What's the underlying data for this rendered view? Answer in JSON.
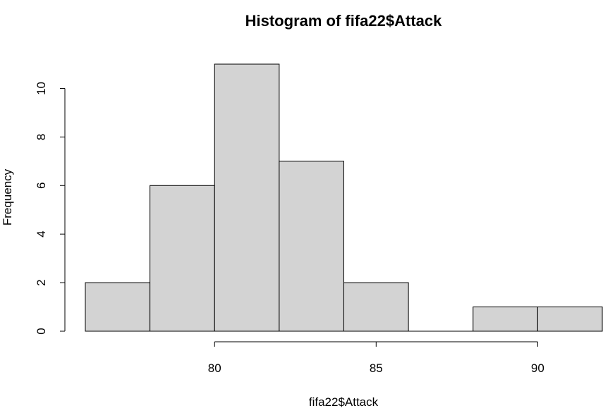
{
  "chart_data": {
    "type": "bar",
    "title": "Histogram of fifa22$Attack",
    "xlabel": "fifa22$Attack",
    "ylabel": "Frequency",
    "bins": [
      {
        "from": 76,
        "to": 78,
        "count": 2
      },
      {
        "from": 78,
        "to": 80,
        "count": 6
      },
      {
        "from": 80,
        "to": 82,
        "count": 11
      },
      {
        "from": 82,
        "to": 84,
        "count": 7
      },
      {
        "from": 84,
        "to": 86,
        "count": 2
      },
      {
        "from": 86,
        "to": 88,
        "count": 0
      },
      {
        "from": 88,
        "to": 90,
        "count": 1
      },
      {
        "from": 90,
        "to": 92,
        "count": 1
      }
    ],
    "x_ticks": [
      80,
      85,
      90
    ],
    "y_ticks": [
      0,
      2,
      4,
      6,
      8,
      10
    ],
    "xlim": [
      76,
      92
    ],
    "ylim": [
      0,
      11
    ],
    "grid": false,
    "bar_color": "#d3d3d3"
  }
}
